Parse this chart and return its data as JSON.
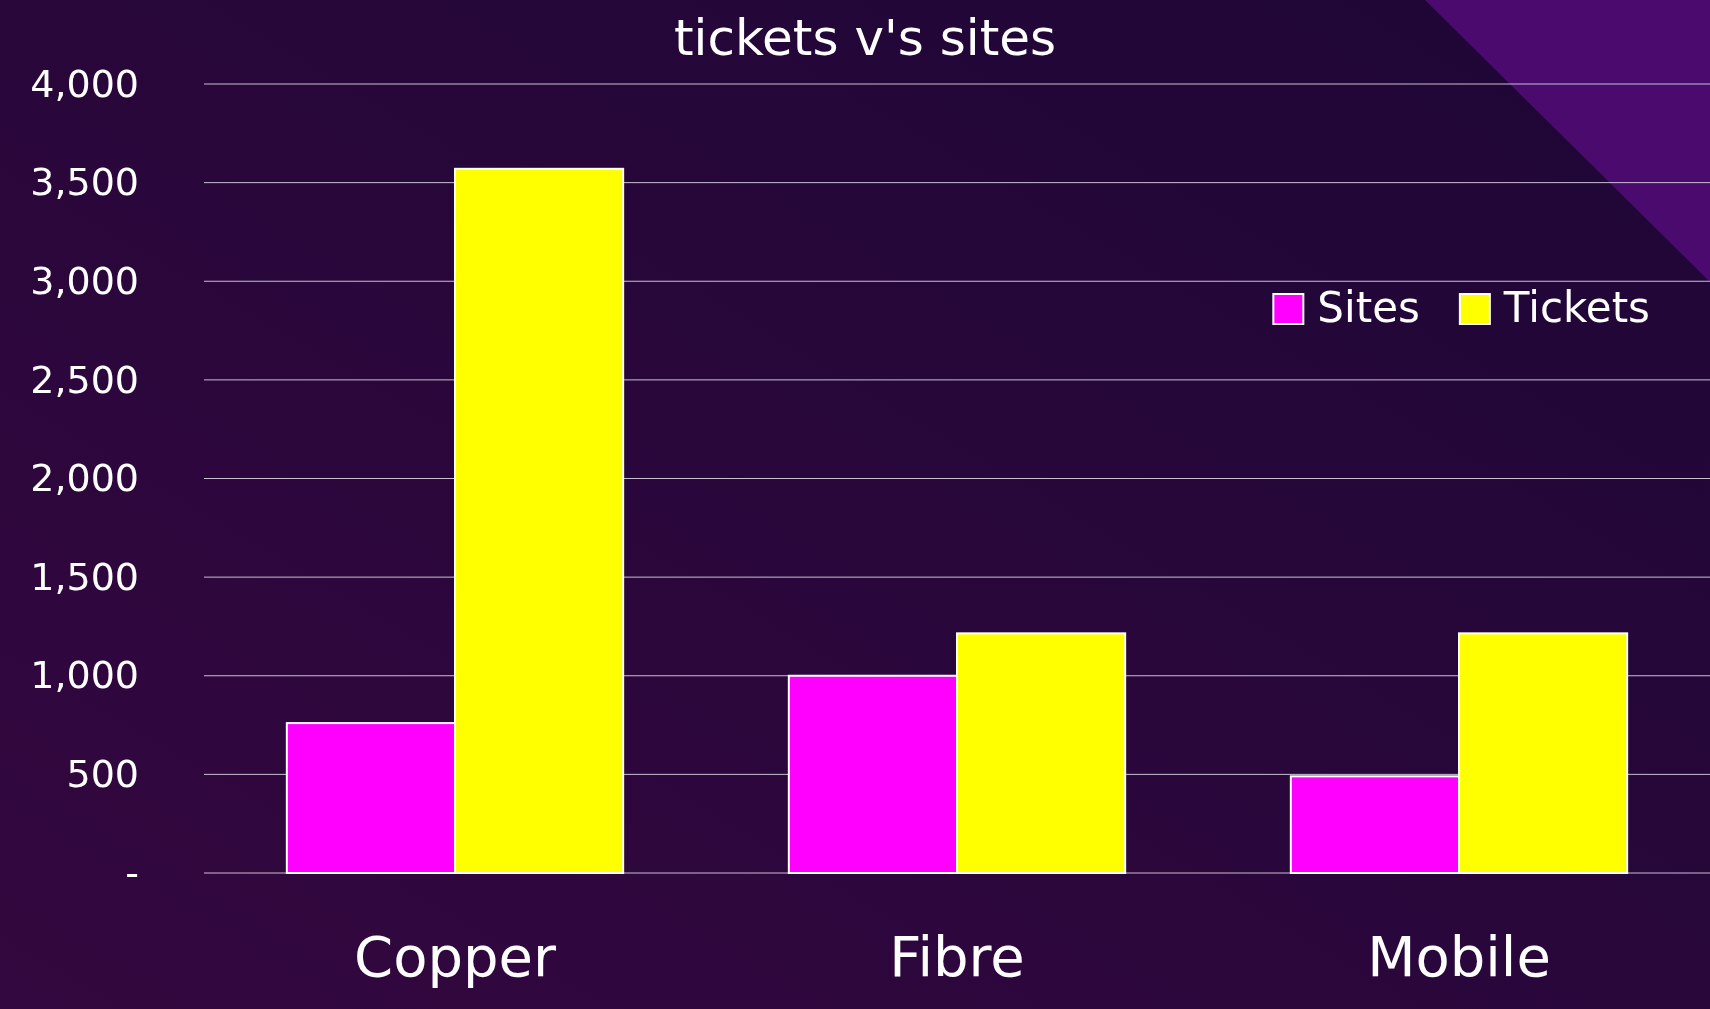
{
  "chart_data": {
    "type": "bar",
    "title": "tickets v's sites",
    "categories": [
      "Copper",
      "Fibre",
      "Mobile"
    ],
    "series": [
      {
        "name": "Sites",
        "color": "#ff00ff",
        "values": [
          760,
          1000,
          490
        ]
      },
      {
        "name": "Tickets",
        "color": "#ffff00",
        "values": [
          3570,
          1215,
          1215
        ]
      }
    ],
    "ylim": [
      0,
      4000
    ],
    "yticks": [
      {
        "value": 0,
        "label": "-"
      },
      {
        "value": 500,
        "label": "500"
      },
      {
        "value": 1000,
        "label": "1,000"
      },
      {
        "value": 1500,
        "label": "1,500"
      },
      {
        "value": 2000,
        "label": "2,000"
      },
      {
        "value": 2500,
        "label": "2,500"
      },
      {
        "value": 3000,
        "label": "3,000"
      },
      {
        "value": 3500,
        "label": "3,500"
      },
      {
        "value": 4000,
        "label": "4,000"
      }
    ],
    "grid": "y",
    "legend": "top right"
  }
}
